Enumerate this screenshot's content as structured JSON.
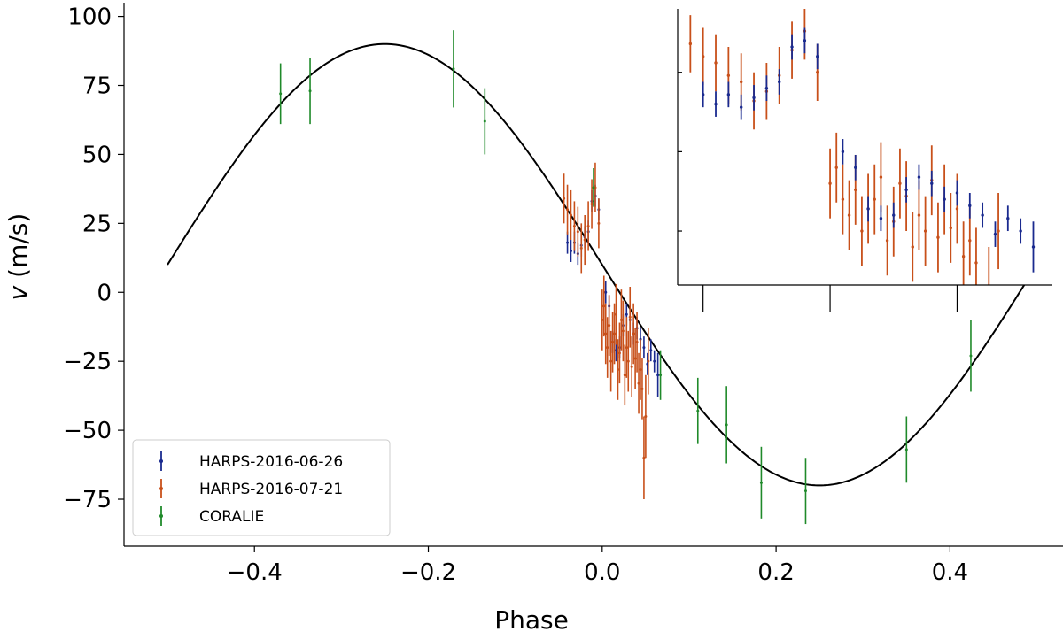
{
  "chart_data": {
    "type": "scatter",
    "title": "",
    "xlabel": "Phase",
    "ylabel": "v (m/s)",
    "ylabel_italic_part": "v",
    "ylabel_rest": " (m/s)",
    "xlim": [
      -0.55,
      0.53
    ],
    "ylim": [
      -92,
      105
    ],
    "xticks": [
      -0.4,
      -0.2,
      0.0,
      0.2,
      0.4
    ],
    "xtick_labels": [
      "−0.4",
      "−0.2",
      "0.0",
      "0.2",
      "0.4"
    ],
    "yticks": [
      -75,
      -50,
      -25,
      0,
      25,
      50,
      75,
      100
    ],
    "ytick_labels": [
      "−75",
      "−50",
      "−25",
      "0",
      "25",
      "50",
      "75",
      "100"
    ],
    "grid": false,
    "legend_position": "bottom-left",
    "model": {
      "name": "",
      "color": "#000000",
      "semi_amplitude": 80,
      "offset": 10,
      "phase_of_max": -0.25,
      "x_range": [
        -0.5,
        0.5
      ]
    },
    "series": [
      {
        "name": "HARPS-2016-06-26",
        "color": "#1a2a8f",
        "points": [
          [
            -0.04,
            18,
            4
          ],
          [
            -0.036,
            15,
            4
          ],
          [
            -0.032,
            18,
            4
          ],
          [
            -0.028,
            14,
            4
          ],
          [
            -0.024,
            17,
            4
          ],
          [
            -0.02,
            20,
            4
          ],
          [
            -0.016,
            22,
            4
          ],
          [
            -0.012,
            33,
            4
          ],
          [
            -0.008,
            35,
            4
          ],
          [
            -0.004,
            30,
            4
          ],
          [
            0.004,
            0,
            4
          ],
          [
            0.008,
            -5,
            4
          ],
          [
            0.012,
            -18,
            4
          ],
          [
            0.016,
            -21,
            4
          ],
          [
            0.02,
            -20,
            4
          ],
          [
            0.024,
            -12,
            4
          ],
          [
            0.028,
            -8,
            4
          ],
          [
            0.032,
            -10,
            4
          ],
          [
            0.036,
            -15,
            4
          ],
          [
            0.04,
            -13,
            4
          ],
          [
            0.044,
            -17,
            4
          ],
          [
            0.048,
            -20,
            4
          ],
          [
            0.052,
            -26,
            4
          ],
          [
            0.056,
            -21,
            4
          ],
          [
            0.06,
            -25,
            4
          ],
          [
            0.064,
            -30,
            8
          ]
        ]
      },
      {
        "name": "HARPS-2016-07-21",
        "color": "#c8501a",
        "points": [
          [
            -0.044,
            34,
            9
          ],
          [
            -0.04,
            30,
            9
          ],
          [
            -0.036,
            28,
            9
          ],
          [
            -0.032,
            24,
            9
          ],
          [
            -0.028,
            22,
            9
          ],
          [
            -0.024,
            16,
            9
          ],
          [
            -0.02,
            19,
            9
          ],
          [
            -0.016,
            24,
            9
          ],
          [
            -0.012,
            32,
            9
          ],
          [
            -0.008,
            38,
            9
          ],
          [
            -0.004,
            25,
            9
          ],
          [
            0.0,
            -10,
            11
          ],
          [
            0.002,
            -5,
            11
          ],
          [
            0.004,
            -15,
            11
          ],
          [
            0.006,
            -20,
            11
          ],
          [
            0.008,
            -12,
            11
          ],
          [
            0.01,
            -25,
            11
          ],
          [
            0.012,
            -18,
            11
          ],
          [
            0.014,
            -15,
            11
          ],
          [
            0.016,
            -8,
            11
          ],
          [
            0.018,
            -28,
            11
          ],
          [
            0.02,
            -22,
            11
          ],
          [
            0.022,
            -10,
            11
          ],
          [
            0.024,
            -14,
            11
          ],
          [
            0.026,
            -30,
            11
          ],
          [
            0.028,
            -20,
            11
          ],
          [
            0.03,
            -25,
            11
          ],
          [
            0.032,
            -9,
            11
          ],
          [
            0.034,
            -27,
            11
          ],
          [
            0.036,
            -15,
            11
          ],
          [
            0.038,
            -24,
            11
          ],
          [
            0.04,
            -18,
            11
          ],
          [
            0.042,
            -33,
            11
          ],
          [
            0.044,
            -28,
            11
          ],
          [
            0.046,
            -35,
            11
          ],
          [
            0.048,
            -60,
            15
          ],
          [
            0.05,
            -45,
            15
          ],
          [
            0.053,
            -25,
            12
          ]
        ]
      },
      {
        "name": "CORALIE",
        "color": "#1f8a2a",
        "points": [
          [
            -0.37,
            72,
            11
          ],
          [
            -0.336,
            73,
            12
          ],
          [
            -0.171,
            81,
            14
          ],
          [
            -0.135,
            62,
            12
          ],
          [
            -0.01,
            38,
            7
          ],
          [
            0.067,
            -30,
            9
          ],
          [
            0.11,
            -43,
            12
          ],
          [
            0.143,
            -48,
            14
          ],
          [
            0.183,
            -69,
            13
          ],
          [
            0.234,
            -72,
            12
          ],
          [
            0.35,
            -57,
            12
          ],
          [
            0.424,
            -23,
            13
          ]
        ]
      }
    ],
    "inset": {
      "description_visible": false,
      "xlim": [
        -0.048,
        0.07
      ],
      "ylim": [
        -42,
        45
      ],
      "xticks": [
        -0.04,
        0.0,
        0.04
      ],
      "yticks": [
        -25,
        0,
        25
      ]
    }
  }
}
